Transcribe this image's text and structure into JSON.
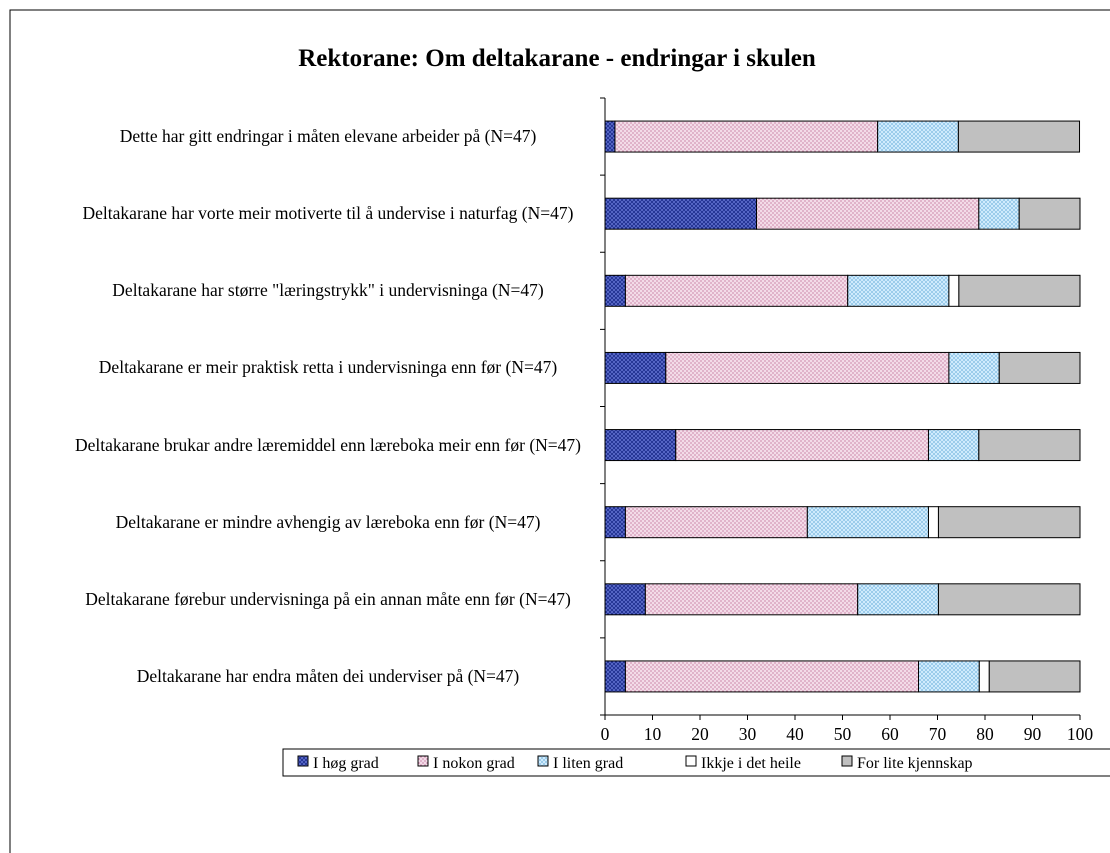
{
  "chart_data": {
    "type": "stacked_barh",
    "title": "Rektorane: Om deltakarane - endringar i skulen",
    "categories": [
      "Dette har gitt endringar i måten elevane arbeider på (N=47)",
      "Deltakarane har vorte meir motiverte til å undervise i naturfag (N=47)",
      "Deltakarane har større \"læringstrykk\" i undervisninga (N=47)",
      "Deltakarane er meir praktisk retta i undervisninga enn før (N=47)",
      "Deltakarane brukar andre læremiddel enn læreboka meir enn før (N=47)",
      "Deltakarane er mindre avhengig av læreboka enn før  (N=47)",
      "Deltakarane førebur undervisninga på ein annan måte enn før  (N=47)",
      "Deltakarane har endra måten dei underviser på (N=47)"
    ],
    "series": [
      {
        "name": "I høg grad",
        "color": "#1a2a8a",
        "values": [
          2.1,
          31.9,
          4.3,
          12.8,
          14.9,
          4.3,
          8.5,
          4.3
        ]
      },
      {
        "name": "I nokon grad",
        "color": "#f3dbe8",
        "values": [
          55.3,
          46.8,
          46.8,
          59.6,
          53.2,
          38.3,
          44.7,
          61.7
        ]
      },
      {
        "name": "I liten grad",
        "color": "#d6efff",
        "values": [
          17.0,
          8.5,
          21.3,
          10.6,
          10.6,
          25.5,
          17.0,
          12.8
        ]
      },
      {
        "name": "Ikkje i det heile",
        "color": "#ffffff",
        "values": [
          0,
          0,
          2.1,
          0,
          0,
          2.1,
          0,
          2.1
        ]
      },
      {
        "name": "For lite kjennskap",
        "color": "#c0c0c0",
        "values": [
          25.5,
          12.8,
          25.5,
          17.0,
          21.3,
          29.8,
          29.8,
          19.1
        ]
      }
    ],
    "xlim": [
      0,
      100
    ],
    "xticks": [
      0,
      10,
      20,
      30,
      40,
      50,
      60,
      70,
      80,
      90,
      100
    ],
    "legend": "bottom"
  }
}
